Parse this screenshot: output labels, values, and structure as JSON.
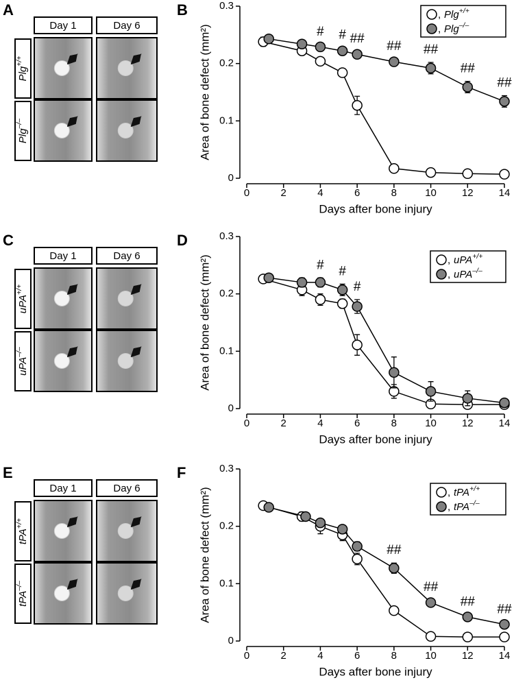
{
  "image_panels": [
    {
      "label": "A",
      "columns": [
        "Day 1",
        "Day 6"
      ],
      "rows": [
        "Plg+/+",
        "Plg–/–"
      ]
    },
    {
      "label": "C",
      "columns": [
        "Day 1",
        "Day 6"
      ],
      "rows": [
        "uPA+/+",
        "uPA–/–"
      ]
    },
    {
      "label": "E",
      "columns": [
        "Day 1",
        "Day 6"
      ],
      "rows": [
        "tPA+/+",
        "tPA–/–"
      ]
    }
  ],
  "chart_data": [
    {
      "type": "line",
      "label": "B",
      "x_label": "Days after bone injury",
      "y_label": "Area of bone defect (mm²)",
      "xlim": [
        0,
        14
      ],
      "xticks": [
        0,
        2,
        4,
        6,
        8,
        10,
        12,
        14
      ],
      "ylim": [
        0,
        0.3
      ],
      "yticks": [
        0,
        0.1,
        0.2,
        0.3
      ],
      "legend": "upper right",
      "series": [
        {
          "name": "Plg+/+",
          "color": "#ffffff",
          "x": [
            0.9,
            3,
            4,
            5.2,
            6,
            8,
            10,
            12,
            14
          ],
          "values": [
            0.238,
            0.222,
            0.204,
            0.184,
            0.127,
            0.017,
            0.01,
            0.008,
            0.007
          ],
          "errors": [
            0.008,
            0.006,
            0.005,
            0.005,
            0.016,
            0.003,
            0.003,
            0.002,
            0.002
          ]
        },
        {
          "name": "Plg–/–",
          "color": "#808080",
          "x": [
            1.2,
            3,
            4,
            5.2,
            6,
            8,
            10,
            12,
            14
          ],
          "values": [
            0.243,
            0.234,
            0.229,
            0.222,
            0.216,
            0.203,
            0.192,
            0.159,
            0.134
          ],
          "errors": [
            0.004,
            0.004,
            0.004,
            0.006,
            0.005,
            0.005,
            0.01,
            0.01,
            0.01
          ]
        }
      ],
      "annotations": [
        {
          "x": 4,
          "label": "#"
        },
        {
          "x": 5.2,
          "label": "#"
        },
        {
          "x": 6,
          "label": "##"
        },
        {
          "x": 8,
          "label": "##"
        },
        {
          "x": 10,
          "label": "##"
        },
        {
          "x": 12,
          "label": "##"
        },
        {
          "x": 14,
          "label": "##"
        }
      ]
    },
    {
      "type": "line",
      "label": "D",
      "x_label": "Days after bone injury",
      "y_label": "Area of bone defect (mm²)",
      "xlim": [
        0,
        14
      ],
      "xticks": [
        0,
        2,
        4,
        6,
        8,
        10,
        12,
        14
      ],
      "ylim": [
        0,
        0.3
      ],
      "yticks": [
        0,
        0.1,
        0.2,
        0.3
      ],
      "legend": "right",
      "series": [
        {
          "name": "uPA+/+",
          "color": "#ffffff",
          "x": [
            0.9,
            3,
            4,
            5.2,
            6,
            8,
            10,
            12,
            14
          ],
          "values": [
            0.226,
            0.207,
            0.19,
            0.183,
            0.111,
            0.03,
            0.008,
            0.007,
            0.007
          ],
          "errors": [
            0.004,
            0.01,
            0.01,
            0.008,
            0.018,
            0.012,
            0.005,
            0.004,
            0.003
          ]
        },
        {
          "name": "uPA–/–",
          "color": "#808080",
          "x": [
            1.2,
            3,
            4,
            5.2,
            6,
            8,
            10,
            12,
            14
          ],
          "values": [
            0.228,
            0.22,
            0.22,
            0.207,
            0.178,
            0.063,
            0.03,
            0.018,
            0.01
          ],
          "errors": [
            0.004,
            0.008,
            0.008,
            0.01,
            0.012,
            0.027,
            0.017,
            0.013,
            0.005
          ]
        }
      ],
      "annotations": [
        {
          "x": 4,
          "label": "#"
        },
        {
          "x": 5.2,
          "label": "#"
        },
        {
          "x": 6,
          "label": "#"
        }
      ]
    },
    {
      "type": "line",
      "label": "F",
      "x_label": "Days after bone injury",
      "y_label": "Area of bone defect (mm²)",
      "xlim": [
        0,
        14
      ],
      "xticks": [
        0,
        2,
        4,
        6,
        8,
        10,
        12,
        14
      ],
      "ylim": [
        0,
        0.3
      ],
      "yticks": [
        0,
        0.1,
        0.2,
        0.3
      ],
      "legend": "right",
      "series": [
        {
          "name": "tPA+/+",
          "color": "#ffffff",
          "x": [
            0.9,
            3,
            4,
            5.2,
            6,
            8,
            10,
            12,
            14
          ],
          "values": [
            0.236,
            0.217,
            0.2,
            0.185,
            0.143,
            0.053,
            0.008,
            0.007,
            0.007
          ],
          "errors": [
            0.004,
            0.008,
            0.013,
            0.01,
            0.01,
            0.004,
            0.003,
            0.002,
            0.002
          ]
        },
        {
          "name": "tPA–/–",
          "color": "#808080",
          "x": [
            1.2,
            3.2,
            4,
            5.2,
            6,
            8,
            10,
            12,
            14
          ],
          "values": [
            0.233,
            0.217,
            0.206,
            0.195,
            0.165,
            0.127,
            0.067,
            0.042,
            0.029
          ],
          "errors": [
            0.005,
            0.006,
            0.006,
            0.006,
            0.008,
            0.009,
            0.005,
            0.004,
            0.004
          ]
        }
      ],
      "annotations": [
        {
          "x": 8,
          "label": "##"
        },
        {
          "x": 10,
          "label": "##"
        },
        {
          "x": 12,
          "label": "##"
        },
        {
          "x": 14,
          "label": "##"
        }
      ]
    }
  ]
}
